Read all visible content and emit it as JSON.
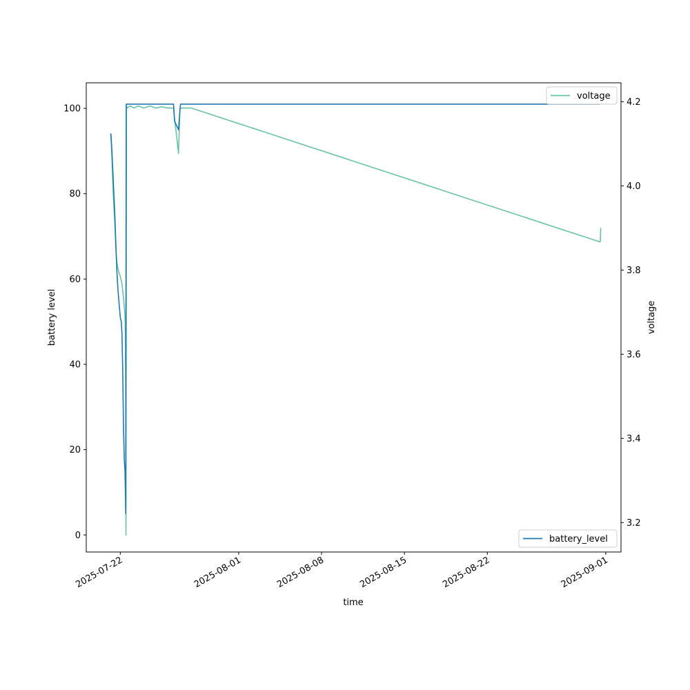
{
  "chart_data": {
    "type": "line",
    "xlabel": "time",
    "ylabel": "battery level",
    "y2label": "voltage",
    "x_range": [
      "2025-07-19T03:00",
      "2025-09-02T07:00"
    ],
    "ylim": [
      -4,
      106
    ],
    "y2lim": [
      3.13,
      4.245
    ],
    "x_ticks": [
      "2025-07-22",
      "2025-08-01",
      "2025-08-08",
      "2025-08-15",
      "2025-08-22",
      "2025-09-01"
    ],
    "y_ticks": [
      0,
      20,
      40,
      60,
      80,
      100
    ],
    "y2_ticks": [
      "3.2",
      "3.4",
      "3.6",
      "3.8",
      "4.0",
      "4.2"
    ],
    "legends": [
      {
        "label": "voltage",
        "placement": "upper right"
      },
      {
        "label": "battery_level",
        "placement": "lower right"
      }
    ],
    "series": [
      {
        "name": "battery_level",
        "axis": "left",
        "color": "#1f77b4",
        "points": [
          [
            "2025-07-21T03:30",
            94
          ],
          [
            "2025-07-21T05:00",
            94
          ],
          [
            "2025-07-21T07:00",
            90
          ],
          [
            "2025-07-21T09:00",
            85
          ],
          [
            "2025-07-21T11:00",
            80
          ],
          [
            "2025-07-21T13:00",
            75
          ],
          [
            "2025-07-21T15:00",
            68
          ],
          [
            "2025-07-21T17:00",
            62
          ],
          [
            "2025-07-21T19:00",
            58
          ],
          [
            "2025-07-21T21:00",
            55
          ],
          [
            "2025-07-21T22:30",
            53
          ],
          [
            "2025-07-22T00:00",
            51
          ],
          [
            "2025-07-22T02:00",
            50
          ],
          [
            "2025-07-22T03:30",
            47
          ],
          [
            "2025-07-22T05:00",
            38
          ],
          [
            "2025-07-22T06:30",
            25
          ],
          [
            "2025-07-22T08:00",
            18
          ],
          [
            "2025-07-22T09:30",
            15
          ],
          [
            "2025-07-22T10:30",
            9
          ],
          [
            "2025-07-22T11:00",
            5
          ],
          [
            "2025-07-22T12:00",
            101
          ],
          [
            "2025-07-22T14:00",
            101
          ],
          [
            "2025-07-26T12:00",
            101
          ],
          [
            "2025-07-26T14:00",
            97
          ],
          [
            "2025-07-26T22:00",
            95
          ],
          [
            "2025-07-27T02:00",
            101
          ],
          [
            "2025-08-31T13:00",
            101
          ]
        ]
      },
      {
        "name": "voltage",
        "axis": "right",
        "color": "#66c2a5",
        "points": [
          [
            "2025-07-21T03:30",
            4.12
          ],
          [
            "2025-07-21T05:00",
            4.12
          ],
          [
            "2025-07-21T07:00",
            4.07
          ],
          [
            "2025-07-21T09:00",
            4.0
          ],
          [
            "2025-07-21T11:00",
            3.95
          ],
          [
            "2025-07-21T13:00",
            3.91
          ],
          [
            "2025-07-21T15:00",
            3.85
          ],
          [
            "2025-07-21T17:00",
            3.82
          ],
          [
            "2025-07-21T19:00",
            3.805
          ],
          [
            "2025-07-21T21:00",
            3.795
          ],
          [
            "2025-07-22T00:00",
            3.785
          ],
          [
            "2025-07-22T03:00",
            3.77
          ],
          [
            "2025-07-22T06:00",
            3.74
          ],
          [
            "2025-07-22T09:00",
            3.7
          ],
          [
            "2025-07-22T10:00",
            3.675
          ],
          [
            "2025-07-22T11:00",
            3.51
          ],
          [
            "2025-07-22T11:30",
            3.17
          ],
          [
            "2025-07-22T12:30",
            4.19
          ],
          [
            "2025-07-22T14:00",
            4.185
          ],
          [
            "2025-07-22T20:00",
            4.19
          ],
          [
            "2025-07-23T04:00",
            4.185
          ],
          [
            "2025-07-23T12:00",
            4.19
          ],
          [
            "2025-07-24T00:00",
            4.185
          ],
          [
            "2025-07-24T12:00",
            4.19
          ],
          [
            "2025-07-25T00:00",
            4.185
          ],
          [
            "2025-07-25T12:00",
            4.188
          ],
          [
            "2025-07-26T00:00",
            4.185
          ],
          [
            "2025-07-26T12:00",
            4.185
          ],
          [
            "2025-07-26T14:00",
            4.16
          ],
          [
            "2025-07-26T18:00",
            4.12
          ],
          [
            "2025-07-26T22:00",
            4.077
          ],
          [
            "2025-07-27T01:00",
            4.185
          ],
          [
            "2025-07-27T12:00",
            4.185
          ],
          [
            "2025-07-28T00:00",
            4.185
          ],
          [
            "2025-08-31T12:00",
            3.867
          ],
          [
            "2025-08-31T13:00",
            3.867
          ],
          [
            "2025-08-31T14:00",
            3.9
          ]
        ]
      }
    ]
  }
}
